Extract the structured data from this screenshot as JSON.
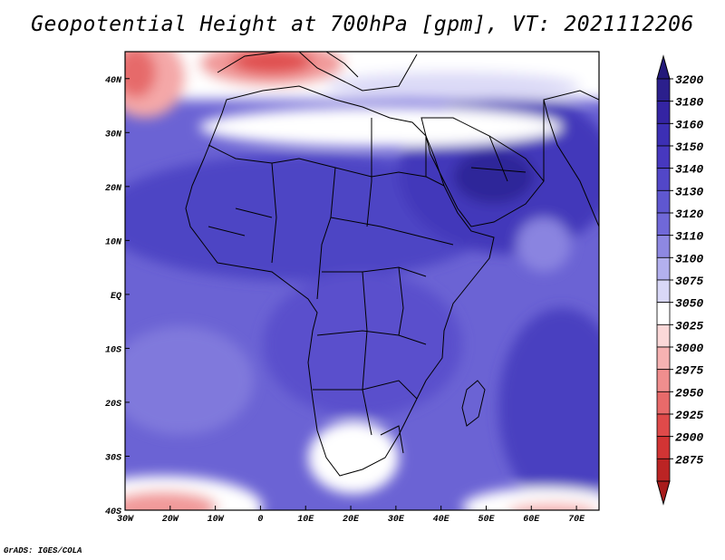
{
  "title": "Geopotential Height at 700hPa [gpm], VT: 2021112206",
  "footer": "GrADS: IGES/COLA",
  "map": {
    "lon_range": [
      -30,
      75
    ],
    "lat_range": [
      -40,
      45
    ],
    "x_ticks": [
      {
        "lon": -30,
        "label": "30W"
      },
      {
        "lon": -20,
        "label": "20W"
      },
      {
        "lon": -10,
        "label": "10W"
      },
      {
        "lon": 0,
        "label": "0"
      },
      {
        "lon": 10,
        "label": "10E"
      },
      {
        "lon": 20,
        "label": "20E"
      },
      {
        "lon": 30,
        "label": "30E"
      },
      {
        "lon": 40,
        "label": "40E"
      },
      {
        "lon": 50,
        "label": "50E"
      },
      {
        "lon": 60,
        "label": "60E"
      },
      {
        "lon": 70,
        "label": "70E"
      }
    ],
    "y_ticks": [
      {
        "lat": 40,
        "label": "40N"
      },
      {
        "lat": 30,
        "label": "30N"
      },
      {
        "lat": 20,
        "label": "20N"
      },
      {
        "lat": 10,
        "label": "10N"
      },
      {
        "lat": 0,
        "label": "EQ"
      },
      {
        "lat": -10,
        "label": "10S"
      },
      {
        "lat": -20,
        "label": "20S"
      },
      {
        "lat": -30,
        "label": "30S"
      },
      {
        "lat": -40,
        "label": "40S"
      }
    ]
  },
  "colorbar": {
    "levels": [
      {
        "label": "3200",
        "color": "#2b1f8c"
      },
      {
        "label": "3180",
        "color": "#3424a3"
      },
      {
        "label": "3160",
        "color": "#3c2fb4"
      },
      {
        "label": "3150",
        "color": "#4738bf"
      },
      {
        "label": "3140",
        "color": "#5247c8"
      },
      {
        "label": "3130",
        "color": "#5f57d0"
      },
      {
        "label": "3120",
        "color": "#7068d8"
      },
      {
        "label": "3110",
        "color": "#8e88e2"
      },
      {
        "label": "3100",
        "color": "#b3b0ee"
      },
      {
        "label": "3075",
        "color": "#d9d8f7"
      },
      {
        "label": "3050",
        "color": "#ffffff"
      },
      {
        "label": "3025",
        "color": "#fbd8d8"
      },
      {
        "label": "3000",
        "color": "#f6b2b2"
      },
      {
        "label": "2975",
        "color": "#f08e8e"
      },
      {
        "label": "2950",
        "color": "#e86a6a"
      },
      {
        "label": "2925",
        "color": "#df4a4a"
      },
      {
        "label": "2900",
        "color": "#d23434"
      },
      {
        "label": "2875",
        "color": "#bb2424"
      }
    ],
    "top_arrow_color": "#23197a",
    "bottom_arrow_color": "#a81c1c"
  }
}
